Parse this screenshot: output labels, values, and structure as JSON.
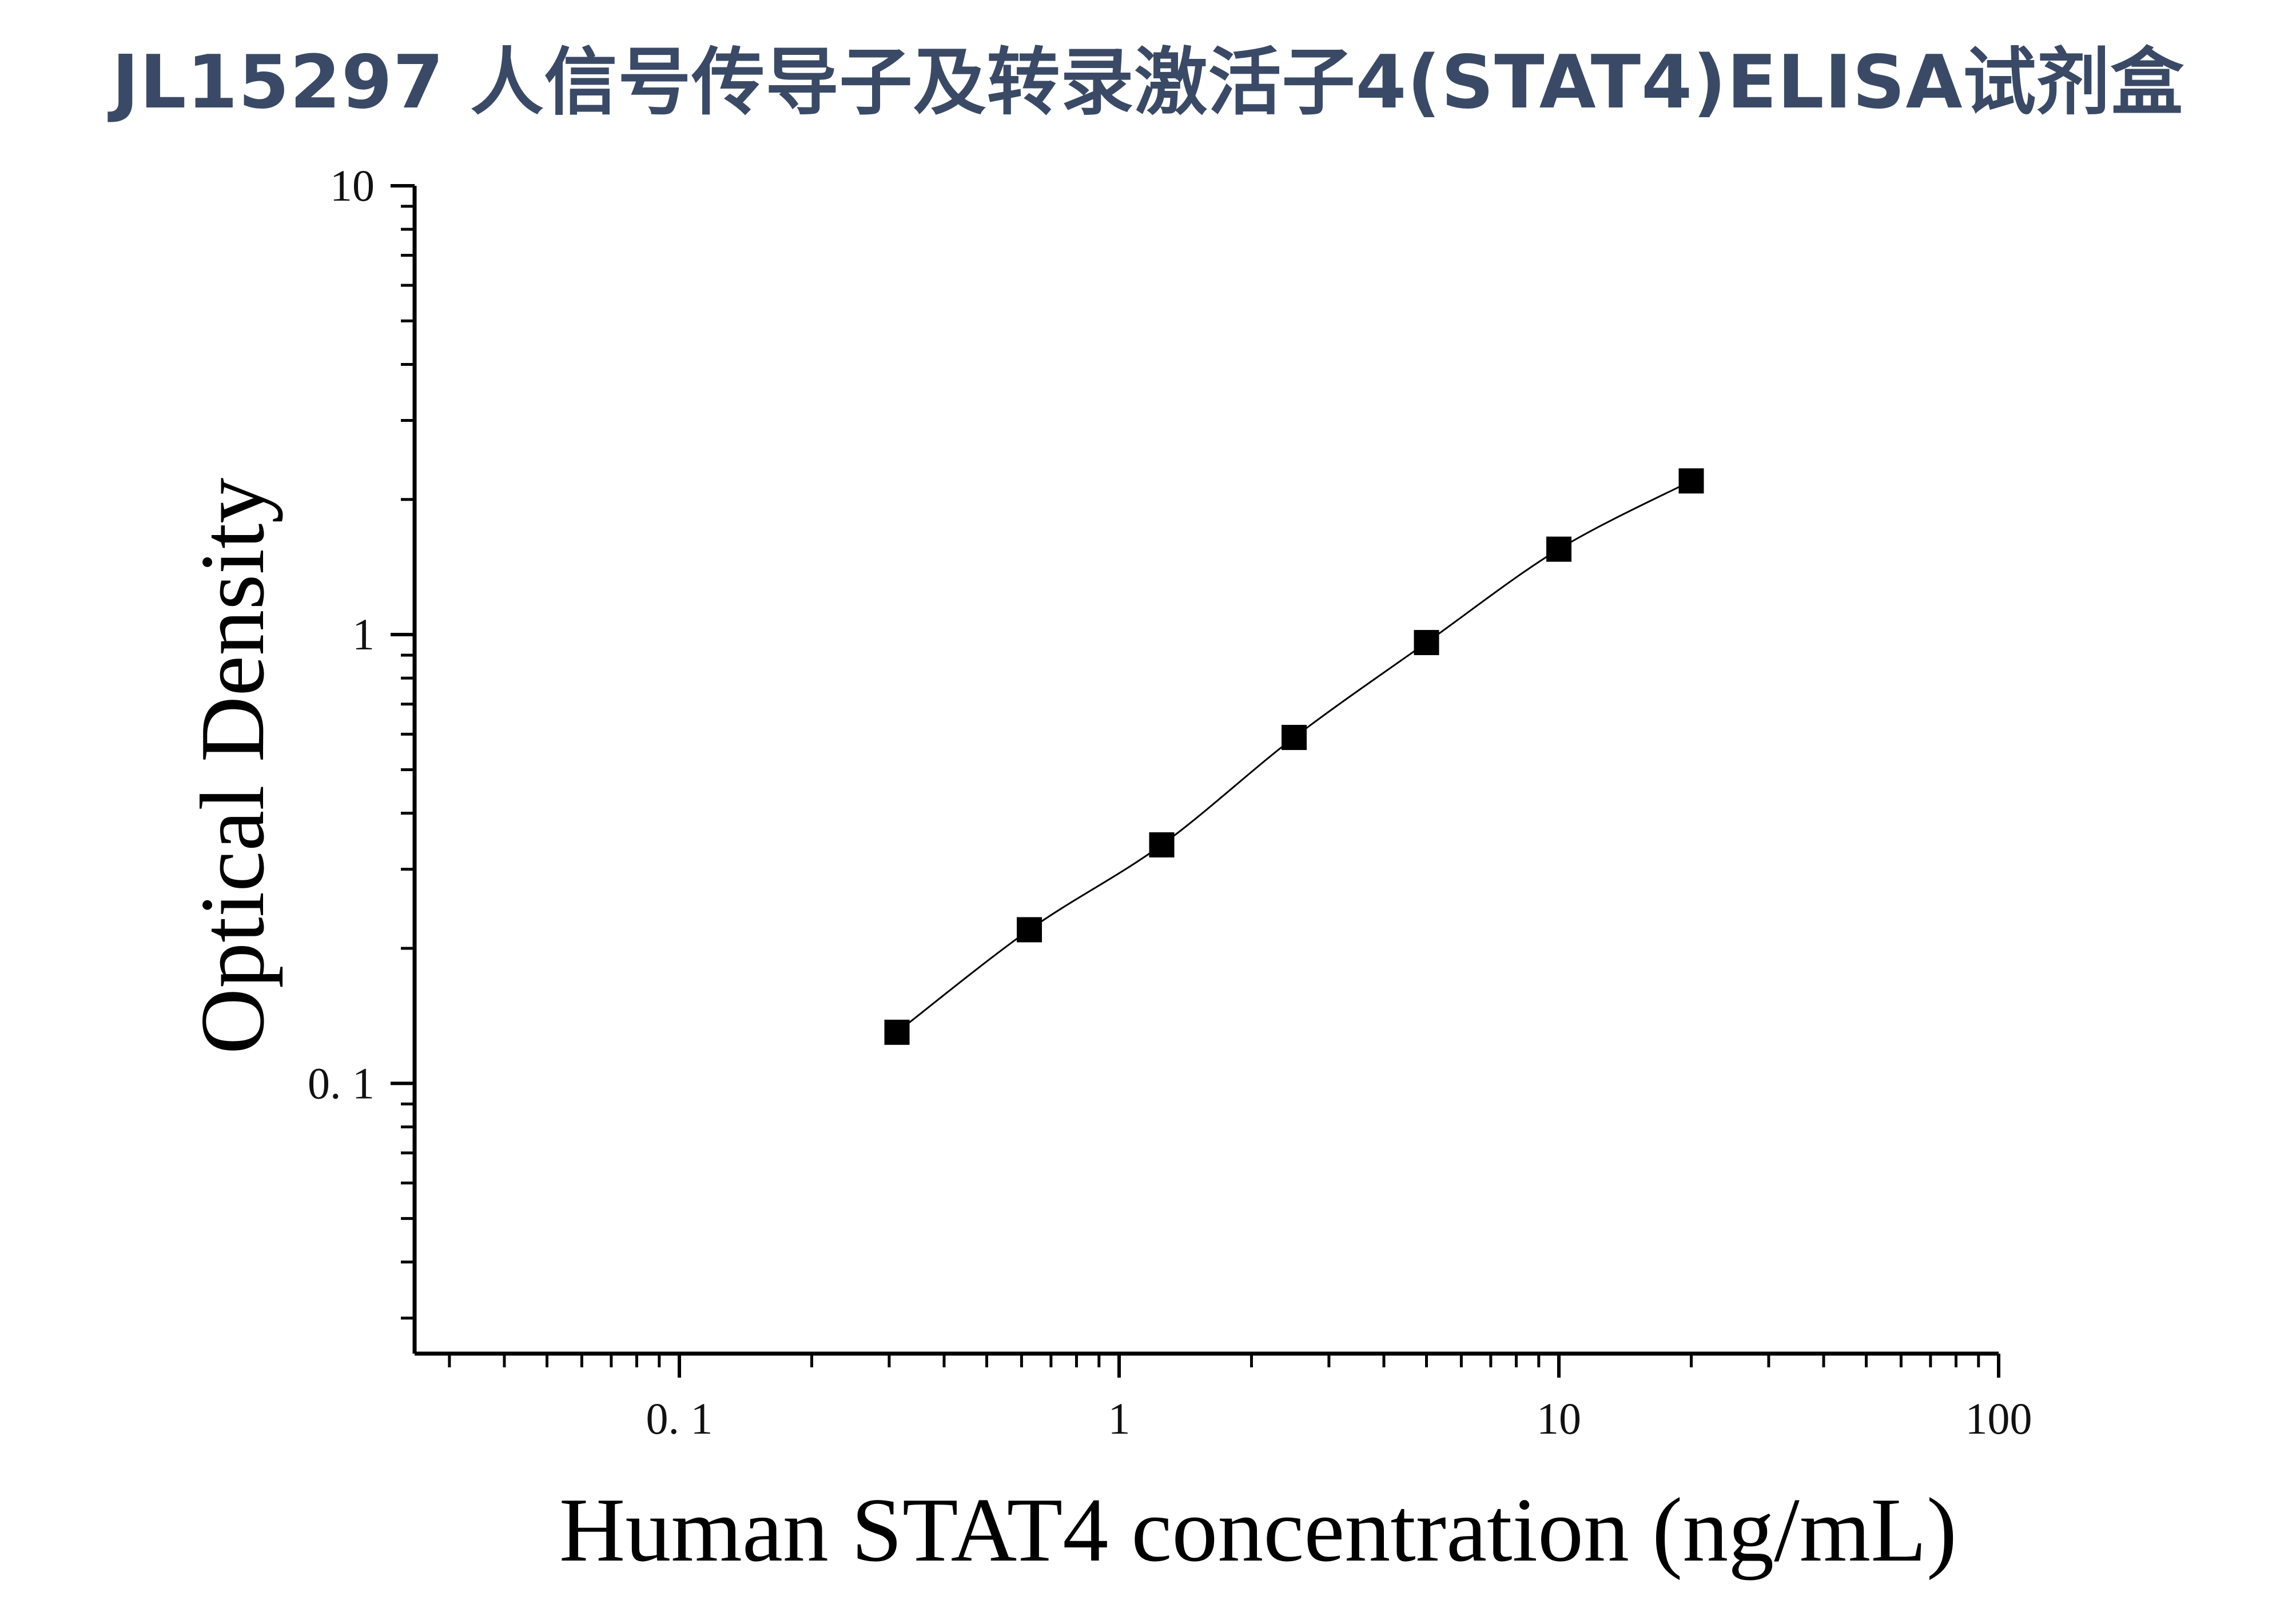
{
  "title": "JL15297 人信号传导子及转录激活子4(STAT4)ELISA试剂盒",
  "chart_data": {
    "type": "line",
    "title": "JL15297 人信号传导子及转录激活子4(STAT4)ELISA试剂盒",
    "xlabel": "Human STAT4 concentration (ng/mL)",
    "ylabel": "Optical Density",
    "xscale": "log",
    "yscale": "log",
    "xlim": [
      0.025,
      100
    ],
    "ylim": [
      0.025,
      10
    ],
    "x_ticks": [
      {
        "value": 0.1,
        "label": "0. 1"
      },
      {
        "value": 1,
        "label": "1"
      },
      {
        "value": 10,
        "label": "10"
      },
      {
        "value": 100,
        "label": "100"
      }
    ],
    "y_ticks": [
      {
        "value": 0.1,
        "label": "0. 1"
      },
      {
        "value": 1,
        "label": "1"
      },
      {
        "value": 10,
        "label": "10"
      }
    ],
    "grid": false,
    "marker": "square",
    "series": [
      {
        "x": [
          0.3125,
          0.625,
          1.25,
          2.5,
          5,
          10,
          20
        ],
        "y": [
          0.13,
          0.22,
          0.34,
          0.59,
          0.96,
          1.55,
          2.2
        ]
      }
    ],
    "colors": {
      "marker": "#000000",
      "curve": "#000000",
      "axis": "#000000"
    }
  }
}
